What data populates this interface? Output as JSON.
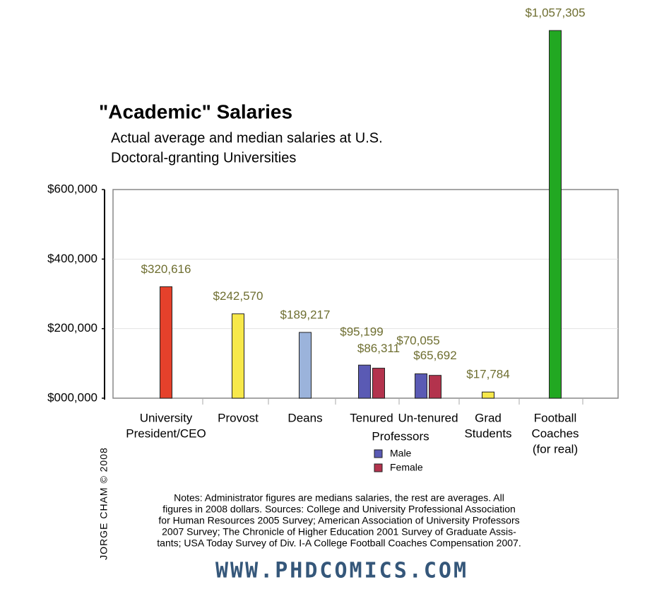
{
  "chart_data": {
    "type": "bar",
    "title": "\"Academic\" Salaries",
    "subtitle": [
      "Actual average and median salaries at U.S.",
      "Doctoral-granting Universities"
    ],
    "categories": [
      [
        "University",
        "President/CEO"
      ],
      [
        "Provost"
      ],
      [
        "Deans"
      ],
      [
        "Tenured"
      ],
      [
        "Un-tenured"
      ],
      [
        "Grad",
        "Students"
      ],
      [
        "Football",
        "Coaches",
        "(for real)"
      ]
    ],
    "group_label": "Professors",
    "values": [
      320616,
      242570,
      189217,
      null,
      null,
      17784,
      1057305
    ],
    "value_labels": [
      "$320,616",
      "$242,570",
      "$189,217",
      null,
      null,
      "$17,784",
      "$1,057,305"
    ],
    "colors": [
      "#e5412b",
      "#f7e84a",
      "#9bb3db",
      null,
      null,
      "#f7e84a",
      "#22a822"
    ],
    "series": [
      {
        "name": "Male",
        "color": "#5a5ab4",
        "values": [
          null,
          null,
          null,
          95199,
          70055,
          null,
          null
        ],
        "value_labels": [
          null,
          null,
          null,
          "$95,199",
          "$70,055",
          null,
          null
        ]
      },
      {
        "name": "Female",
        "color": "#b3334d",
        "values": [
          null,
          null,
          null,
          86311,
          65692,
          null,
          null
        ],
        "value_labels": [
          null,
          null,
          null,
          "$86,311",
          "$65,692",
          null,
          null
        ]
      }
    ],
    "ylim": [
      0,
      600000
    ],
    "yticks": [
      {
        "value": 0,
        "label": "$000,000"
      },
      {
        "value": 200000,
        "label": "$200,000"
      },
      {
        "value": 400000,
        "label": "$400,000"
      },
      {
        "value": 600000,
        "label": "$600,000"
      }
    ],
    "grid": true,
    "notes": [
      "Notes: Administrator figures are medians salaries, the rest are averages. All",
      "figures in 2008 dollars. Sources: College and University Professional Association",
      "for Human Resources 2005 Survey; American Association of University Professors",
      "2007 Survey; The Chronicle of Higher Education 2001 Survey of Graduate Assis-",
      "tants; USA Today Survey of Div. I-A College Football Coaches Compensation 2007."
    ],
    "credit": "JORGE CHAM © 2008",
    "url": "WWW.PHDCOMICS.COM"
  }
}
